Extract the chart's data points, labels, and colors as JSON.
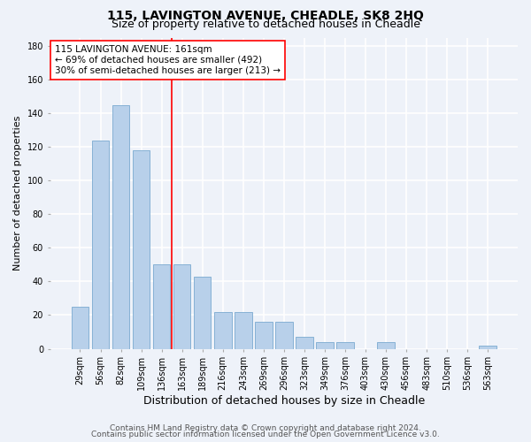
{
  "title1": "115, LAVINGTON AVENUE, CHEADLE, SK8 2HQ",
  "title2": "Size of property relative to detached houses in Cheadle",
  "xlabel": "Distribution of detached houses by size in Cheadle",
  "ylabel": "Number of detached properties",
  "categories": [
    "29sqm",
    "56sqm",
    "82sqm",
    "109sqm",
    "136sqm",
    "163sqm",
    "189sqm",
    "216sqm",
    "243sqm",
    "269sqm",
    "296sqm",
    "323sqm",
    "349sqm",
    "376sqm",
    "403sqm",
    "430sqm",
    "456sqm",
    "483sqm",
    "510sqm",
    "536sqm",
    "563sqm"
  ],
  "values": [
    25,
    124,
    145,
    118,
    50,
    50,
    43,
    22,
    22,
    16,
    16,
    7,
    4,
    4,
    0,
    4,
    0,
    0,
    0,
    0,
    2
  ],
  "bar_color": "#b8d0ea",
  "bar_edge_color": "#7aaad0",
  "vline_color": "red",
  "vline_x_index": 4.5,
  "annotation_text": "115 LAVINGTON AVENUE: 161sqm\n← 69% of detached houses are smaller (492)\n30% of semi-detached houses are larger (213) →",
  "annotation_box_color": "white",
  "annotation_box_edge_color": "red",
  "ylim": [
    0,
    185
  ],
  "yticks": [
    0,
    20,
    40,
    60,
    80,
    100,
    120,
    140,
    160,
    180
  ],
  "footer1": "Contains HM Land Registry data © Crown copyright and database right 2024.",
  "footer2": "Contains public sector information licensed under the Open Government Licence v3.0.",
  "background_color": "#eef2f9",
  "grid_color": "white",
  "title1_fontsize": 10,
  "title2_fontsize": 9,
  "xlabel_fontsize": 9,
  "ylabel_fontsize": 8,
  "tick_fontsize": 7,
  "annotation_fontsize": 7.5,
  "footer_fontsize": 6.5
}
